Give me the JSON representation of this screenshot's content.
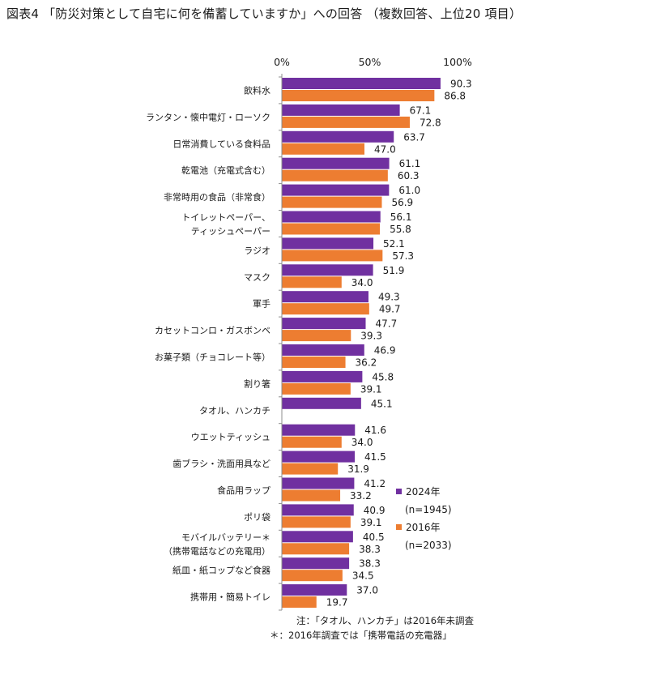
{
  "title": "図表4 「防災対策として自宅に何を備蓄していますか」への回答 （複数回答、上位20 項目）",
  "chart_data": {
    "type": "bar",
    "orientation": "horizontal",
    "xlim": [
      0,
      100
    ],
    "ticks": [
      {
        "value": 0,
        "label": "0%"
      },
      {
        "value": 50,
        "label": "50%"
      },
      {
        "value": 100,
        "label": "100%"
      }
    ],
    "categories": [
      [
        "飲料水"
      ],
      [
        "ランタン・懐中電灯・ローソク"
      ],
      [
        "日常消費している食料品"
      ],
      [
        "乾電池（充電式含む）"
      ],
      [
        "非常時用の食品（非常食）"
      ],
      [
        "トイレットペーパー、",
        "ティッシュペーパー"
      ],
      [
        "ラジオ"
      ],
      [
        "マスク"
      ],
      [
        "軍手"
      ],
      [
        "カセットコンロ・ガスボンベ"
      ],
      [
        "お菓子類（チョコレート等）"
      ],
      [
        "割り箸"
      ],
      [
        "タオル、ハンカチ"
      ],
      [
        "ウエットティッシュ"
      ],
      [
        "歯ブラシ・洗面用具など"
      ],
      [
        "食品用ラップ"
      ],
      [
        "ポリ袋"
      ],
      [
        "モバイルバッテリー＊",
        "（携帯電話などの充電用）"
      ],
      [
        "紙皿・紙コップなど食器"
      ],
      [
        "携帯用・簡易トイレ"
      ]
    ],
    "series": [
      {
        "name": "2024年",
        "n_label": "(n=1945)",
        "color": "#7030a0",
        "values": [
          90.3,
          67.1,
          63.7,
          61.1,
          61.0,
          56.1,
          52.1,
          51.9,
          49.3,
          47.7,
          46.9,
          45.8,
          45.1,
          41.6,
          41.5,
          41.2,
          40.9,
          40.5,
          38.3,
          37.0
        ],
        "value_labels": [
          "90.3",
          "67.1",
          "63.7",
          "61.1",
          "61.0",
          "56.1",
          "52.1",
          "51.9",
          "49.3",
          "47.7",
          "46.9",
          "45.8",
          "45.1",
          "41.6",
          "41.5",
          "41.2",
          "40.9",
          "40.5",
          "38.3",
          "37.0"
        ]
      },
      {
        "name": "2016年",
        "n_label": "(n=2033)",
        "color": "#ed7d31",
        "values": [
          86.8,
          72.8,
          47.0,
          60.3,
          56.9,
          55.8,
          57.3,
          34.0,
          49.7,
          39.3,
          36.2,
          39.1,
          null,
          34.0,
          31.9,
          33.2,
          39.1,
          38.3,
          34.5,
          19.7
        ],
        "value_labels": [
          "86.8",
          "72.8",
          "47.0",
          "60.3",
          "56.9",
          "55.8",
          "57.3",
          "34.0",
          "49.7",
          "39.3",
          "36.2",
          "39.1",
          null,
          "34.0",
          "31.9",
          "33.2",
          "39.1",
          "38.3",
          "34.5",
          "19.7"
        ]
      }
    ],
    "notes": [
      "注：「タオル、ハンカチ」は2016年未調査",
      "＊：2016年調査では「携帯電話の充電器」"
    ]
  }
}
